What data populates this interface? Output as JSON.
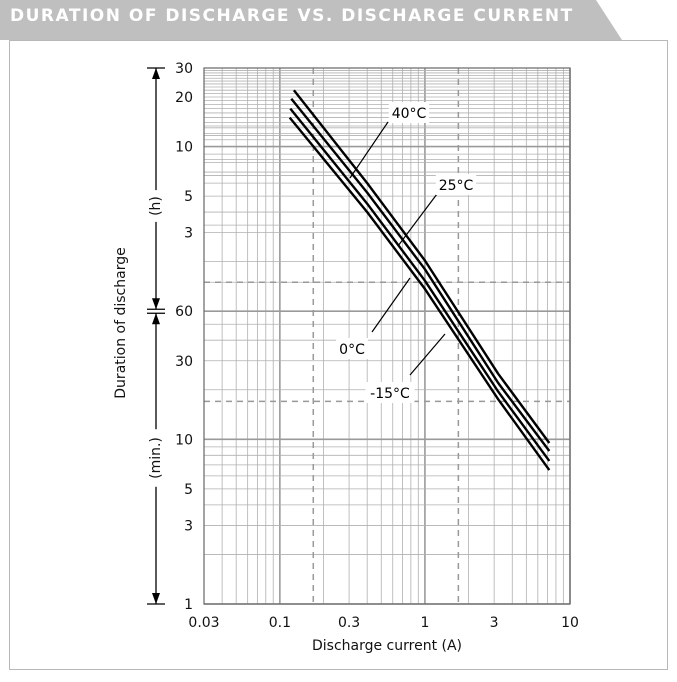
{
  "header": {
    "title": "DURATION OF DISCHARGE VS. DISCHARGE CURRENT"
  },
  "colors": {
    "banner": "#bfbfbf",
    "grid_major": "#9a9a9a",
    "grid_minor": "#b0b0b0",
    "curve": "#000000",
    "dashed": "#999999"
  },
  "chart_data": {
    "type": "line",
    "title": "DURATION OF DISCHARGE VS. DISCHARGE CURRENT",
    "xlabel": "Discharge current (A)",
    "ylabel": "Duration of discharge",
    "x_scale": "log",
    "y_scale": "log",
    "xlim": [
      0.03,
      10
    ],
    "ylim_minutes": [
      1,
      1800
    ],
    "x_ticks": [
      "0.03",
      "0.1",
      "0.3",
      "1",
      "3",
      "10"
    ],
    "x_tick_values": [
      0.03,
      0.1,
      0.3,
      1,
      3,
      10
    ],
    "y_ticks_hours": [
      "30",
      "20",
      "10",
      "5",
      "3"
    ],
    "y_tick_hour_values": [
      30,
      20,
      10,
      5,
      3
    ],
    "y_ticks_minutes": [
      "60",
      "30",
      "10",
      "5",
      "3",
      "1"
    ],
    "y_tick_minute_values": [
      60,
      30,
      10,
      5,
      3,
      1
    ],
    "unit_hours": "(h)",
    "unit_minutes": "(min.)",
    "grid": true,
    "series": [
      {
        "name": "40°C",
        "x": [
          0.125,
          0.4,
          1,
          3.2,
          7.2
        ],
        "y_minutes": [
          1320,
          360,
          122,
          25,
          9.5
        ]
      },
      {
        "name": "25°C",
        "x": [
          0.12,
          0.4,
          1,
          3.2,
          7.2
        ],
        "y_minutes": [
          1170,
          315,
          108,
          22,
          8.5
        ]
      },
      {
        "name": "0°C",
        "x": [
          0.118,
          0.4,
          1,
          3.2,
          7.2
        ],
        "y_minutes": [
          1020,
          270,
          92,
          19.5,
          7.4
        ]
      },
      {
        "name": "-15°C",
        "x": [
          0.117,
          0.4,
          1,
          3.2,
          7.2
        ],
        "y_minutes": [
          900,
          240,
          82,
          17.5,
          6.5
        ]
      }
    ],
    "annotations": [
      {
        "text": "40°C",
        "series": "40°C"
      },
      {
        "text": "25°C",
        "series": "25°C"
      },
      {
        "text": "0°C",
        "series": "0°C"
      },
      {
        "text": "-15°C",
        "series": "-15°C"
      }
    ]
  }
}
